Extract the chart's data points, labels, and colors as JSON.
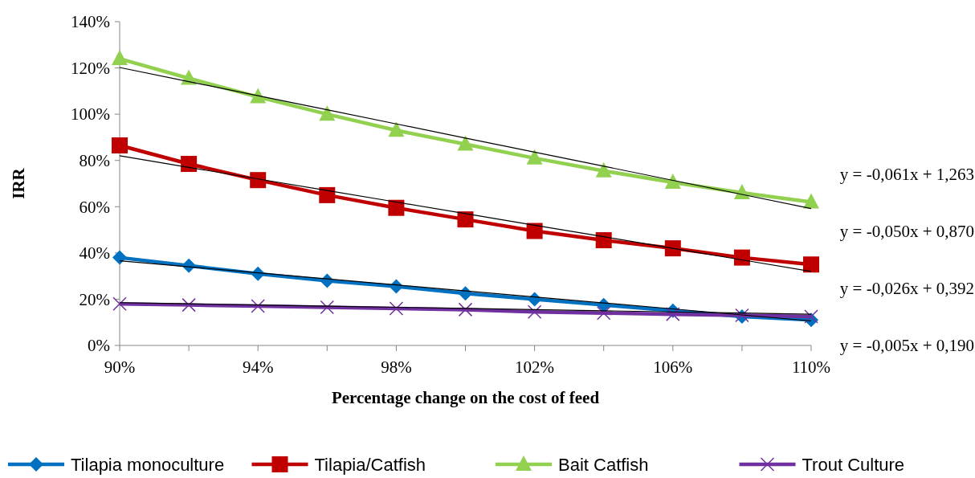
{
  "chart_data": {
    "type": "line",
    "xlabel": "Percentage change on the cost of feed",
    "ylabel": "IRR",
    "categories": [
      "90%",
      null,
      "94%",
      null,
      "98%",
      null,
      "102%",
      null,
      "106%",
      null,
      "110%"
    ],
    "ylim": [
      0,
      140
    ],
    "yticks": [
      {
        "value": 0,
        "label": "0%"
      },
      {
        "value": 20,
        "label": "20%"
      },
      {
        "value": 40,
        "label": "40%"
      },
      {
        "value": 60,
        "label": "60%"
      },
      {
        "value": 80,
        "label": "80%"
      },
      {
        "value": 100,
        "label": "100%"
      },
      {
        "value": 120,
        "label": "120%"
      },
      {
        "value": 140,
        "label": "140%"
      }
    ],
    "grid": false,
    "legend": "bottom",
    "series": [
      {
        "name": "Tilapia monoculture",
        "color": "#0070c0",
        "marker": "diamond",
        "values": [
          38,
          34.5,
          31,
          28,
          25.5,
          22.5,
          20,
          17.5,
          15,
          12.5,
          11
        ]
      },
      {
        "name": "Tilapia/Catfish",
        "color": "#c00000",
        "marker": "square",
        "values": [
          86.5,
          78.5,
          71.5,
          65,
          59.5,
          54.5,
          49.5,
          45.5,
          42,
          38,
          35
        ]
      },
      {
        "name": "Bait Catfish",
        "color": "#92d050",
        "marker": "triangle",
        "values": [
          124,
          115.5,
          107.5,
          100,
          93,
          87,
          81,
          75.5,
          70.5,
          66,
          62
        ]
      },
      {
        "name": "Trout Culture",
        "color": "#7030a0",
        "marker": "cross",
        "values": [
          18,
          17.5,
          17,
          16.5,
          16,
          15.5,
          14.5,
          14,
          13.5,
          13,
          12.5
        ]
      },
      {
        "color": "#000000",
        "marker": "none",
        "values": [
          120.2,
          114.1,
          108,
          101.9,
          95.8,
          89.7,
          83.6,
          77.5,
          71.4,
          65.3,
          59.2
        ]
      },
      {
        "color": "#000000",
        "marker": "none",
        "values": [
          82,
          77,
          72,
          67,
          62,
          57,
          52,
          47,
          42,
          37,
          32
        ]
      },
      {
        "color": "#000000",
        "marker": "none",
        "values": [
          36.6,
          34,
          31.4,
          28.8,
          26.2,
          23.6,
          21,
          18.4,
          15.8,
          13.2,
          10.6
        ]
      },
      {
        "color": "#000000",
        "marker": "none",
        "values": [
          18.5,
          18,
          17.5,
          17,
          16.5,
          16,
          15.5,
          15,
          14.5,
          14,
          13.5
        ]
      }
    ],
    "annotations": [
      "y = -0,061x + 1,263",
      "y = -0,050x + 0,870",
      "y = -0,026x + 0,392",
      "y = -0,005x + 0,190"
    ]
  }
}
